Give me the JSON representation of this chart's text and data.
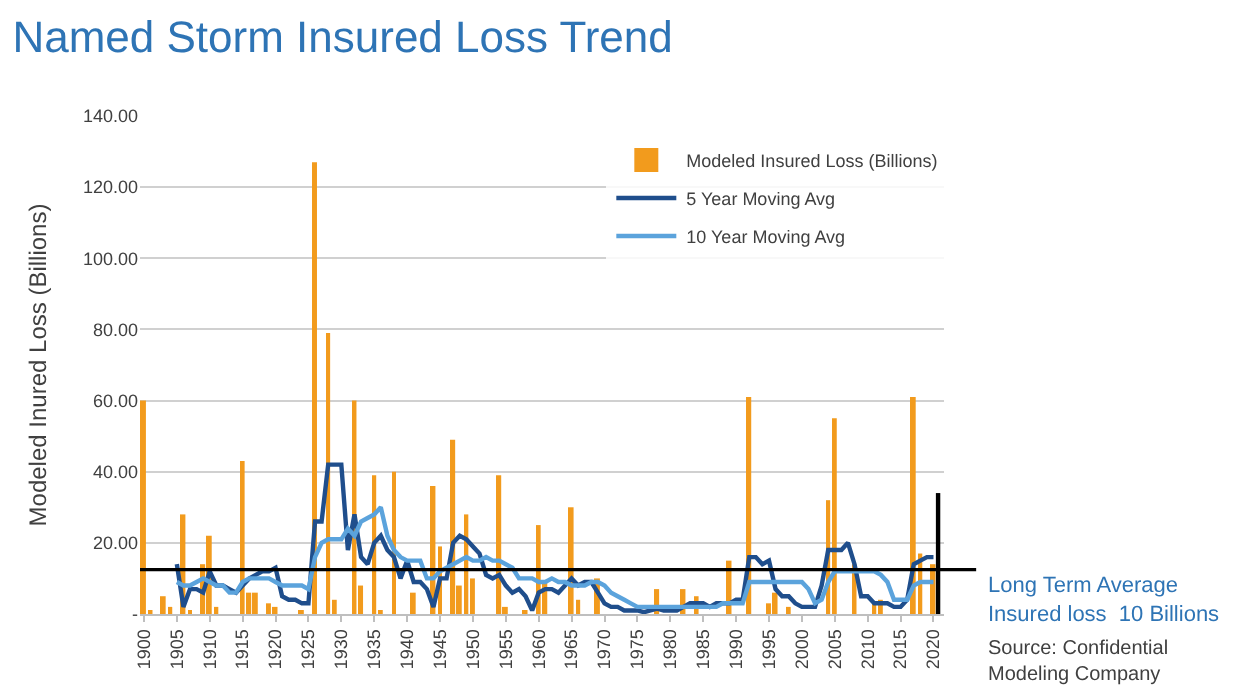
{
  "chart_data": {
    "type": "bar",
    "title": "Named Storm Insured Loss Trend",
    "ylabel": "Modeled Inured Loss (Billions)",
    "x": [
      1900,
      1901,
      1902,
      1903,
      1904,
      1905,
      1906,
      1907,
      1908,
      1909,
      1910,
      1911,
      1912,
      1913,
      1914,
      1915,
      1916,
      1917,
      1918,
      1919,
      1920,
      1921,
      1922,
      1923,
      1924,
      1925,
      1926,
      1927,
      1928,
      1929,
      1930,
      1931,
      1932,
      1933,
      1934,
      1935,
      1936,
      1937,
      1938,
      1939,
      1940,
      1941,
      1942,
      1943,
      1944,
      1945,
      1946,
      1947,
      1948,
      1949,
      1950,
      1951,
      1952,
      1953,
      1954,
      1955,
      1956,
      1957,
      1958,
      1959,
      1960,
      1961,
      1962,
      1963,
      1964,
      1965,
      1966,
      1967,
      1968,
      1969,
      1970,
      1971,
      1972,
      1973,
      1974,
      1975,
      1976,
      1977,
      1978,
      1979,
      1980,
      1981,
      1982,
      1983,
      1984,
      1985,
      1986,
      1987,
      1988,
      1989,
      1990,
      1991,
      1992,
      1993,
      1994,
      1995,
      1996,
      1997,
      1998,
      1999,
      2000,
      2001,
      2002,
      2003,
      2004,
      2005,
      2006,
      2007,
      2008,
      2009,
      2010,
      2011,
      2012,
      2013,
      2014,
      2015,
      2016,
      2017,
      2018,
      2019,
      2020
    ],
    "series": [
      {
        "name": "Modeled Insured Loss (Billions)",
        "color": "#f29b1d",
        "values": [
          60,
          1,
          0,
          5,
          2,
          0,
          28,
          1,
          0,
          14,
          22,
          2,
          0,
          0,
          0,
          43,
          6,
          6,
          0,
          3,
          2,
          0,
          0,
          0,
          1,
          0,
          127,
          0,
          79,
          4,
          0,
          0,
          60,
          8,
          0,
          39,
          1,
          0,
          40,
          0,
          0,
          6,
          0,
          0,
          36,
          19,
          0,
          49,
          8,
          28,
          10,
          0,
          0,
          0,
          39,
          2,
          0,
          0,
          1,
          0,
          25,
          9,
          0,
          0,
          0,
          30,
          4,
          0,
          0,
          10,
          0,
          0,
          0,
          0,
          0,
          0,
          0,
          0,
          7,
          0,
          0,
          0,
          7,
          0,
          5,
          0,
          0,
          0,
          0,
          15,
          0,
          0,
          61,
          0,
          0,
          3,
          6,
          0,
          2,
          0,
          0,
          0,
          0,
          0,
          32,
          55,
          0,
          0,
          14,
          0,
          0,
          3,
          4,
          0,
          0,
          0,
          0,
          61,
          17,
          0,
          14
        ]
      },
      {
        "name": "5 Year Moving Avg",
        "type": "line",
        "color": "#1f4e8c",
        "x": [
          1905,
          1906,
          1907,
          1908,
          1909,
          1910,
          1911,
          1912,
          1913,
          1914,
          1915,
          1916,
          1917,
          1918,
          1919,
          1920,
          1921,
          1922,
          1923,
          1924,
          1925,
          1926,
          1927,
          1928,
          1929,
          1930,
          1931,
          1932,
          1933,
          1934,
          1935,
          1936,
          1937,
          1938,
          1939,
          1940,
          1941,
          1942,
          1943,
          1944,
          1945,
          1946,
          1947,
          1948,
          1949,
          1950,
          1951,
          1952,
          1953,
          1954,
          1955,
          1956,
          1957,
          1958,
          1959,
          1960,
          1961,
          1962,
          1963,
          1964,
          1965,
          1966,
          1967,
          1968,
          1969,
          1970,
          1971,
          1972,
          1973,
          1974,
          1975,
          1976,
          1977,
          1978,
          1979,
          1980,
          1981,
          1982,
          1983,
          1984,
          1985,
          1986,
          1987,
          1988,
          1989,
          1990,
          1991,
          1992,
          1993,
          1994,
          1995,
          1996,
          1997,
          1998,
          1999,
          2000,
          2001,
          2002,
          2003,
          2004,
          2005,
          2006,
          2007,
          2008,
          2009,
          2010,
          2011,
          2012,
          2013,
          2014,
          2015,
          2016,
          2017,
          2018,
          2019,
          2020
        ],
        "values": [
          14,
          2,
          7,
          7,
          6,
          12,
          8,
          8,
          7,
          6,
          8,
          10,
          11,
          12,
          12,
          13,
          5,
          4,
          4,
          3,
          3,
          26,
          26,
          42,
          42,
          42,
          18,
          28,
          16,
          14,
          20,
          22,
          18,
          16,
          10,
          15,
          9,
          9,
          7,
          2,
          10,
          10,
          20,
          22,
          21,
          19,
          17,
          11,
          10,
          11,
          8,
          6,
          7,
          5,
          1,
          6,
          7,
          7,
          6,
          8,
          10,
          8,
          9,
          9,
          6,
          3,
          2,
          2,
          1,
          1,
          1,
          0.5,
          1,
          1.5,
          1,
          1,
          1,
          2,
          3,
          3,
          3,
          2,
          3,
          3,
          3,
          4,
          4,
          16,
          16,
          14,
          15,
          7,
          5,
          5,
          3,
          2,
          2,
          2,
          8,
          18,
          18,
          18,
          20,
          14,
          5,
          5,
          3,
          3,
          3,
          2,
          2,
          4,
          14,
          15,
          16,
          16
        ]
      },
      {
        "name": "10 Year Moving Avg",
        "type": "line",
        "color": "#5ba3dc",
        "x": [
          1905,
          1906,
          1907,
          1908,
          1909,
          1910,
          1911,
          1912,
          1913,
          1914,
          1915,
          1916,
          1917,
          1918,
          1919,
          1920,
          1921,
          1922,
          1923,
          1924,
          1925,
          1926,
          1927,
          1928,
          1929,
          1930,
          1931,
          1932,
          1933,
          1934,
          1935,
          1936,
          1937,
          1938,
          1939,
          1940,
          1941,
          1942,
          1943,
          1944,
          1945,
          1946,
          1947,
          1948,
          1949,
          1950,
          1951,
          1952,
          1953,
          1954,
          1955,
          1956,
          1957,
          1958,
          1959,
          1960,
          1961,
          1962,
          1963,
          1964,
          1965,
          1966,
          1967,
          1968,
          1969,
          1970,
          1971,
          1972,
          1973,
          1974,
          1975,
          1976,
          1977,
          1978,
          1979,
          1980,
          1981,
          1982,
          1983,
          1984,
          1985,
          1986,
          1987,
          1988,
          1989,
          1990,
          1991,
          1992,
          1993,
          1994,
          1995,
          1996,
          1997,
          1998,
          1999,
          2000,
          2001,
          2002,
          2003,
          2004,
          2005,
          2006,
          2007,
          2008,
          2009,
          2010,
          2011,
          2012,
          2013,
          2014,
          2015,
          2016,
          2017,
          2018,
          2019,
          2020
        ],
        "values": [
          9,
          8,
          8,
          9,
          10,
          9,
          8,
          8,
          6,
          6,
          9,
          10,
          10,
          10,
          10,
          9,
          8,
          8,
          8,
          8,
          7,
          16,
          20,
          21,
          21,
          21,
          24,
          22,
          26,
          27,
          28,
          30,
          22,
          18,
          16,
          15,
          15,
          15,
          10,
          10,
          12,
          13,
          14,
          15,
          16,
          15,
          15,
          16,
          15,
          15,
          14,
          13,
          10,
          10,
          10,
          9,
          9,
          10,
          9,
          9,
          8,
          8,
          8,
          9,
          9,
          8,
          6,
          5,
          4,
          3,
          2,
          2,
          2,
          2,
          2,
          2,
          2,
          2,
          2,
          2,
          2,
          2,
          2,
          3,
          3,
          3,
          3,
          9,
          9,
          9,
          9,
          9,
          9,
          9,
          9,
          9,
          7,
          3,
          4,
          9,
          12,
          12,
          12,
          12,
          12,
          12,
          12,
          11,
          9,
          4,
          4,
          4,
          8,
          9,
          9,
          9
        ]
      },
      {
        "type": "line",
        "color": "#000000",
        "x": [
          2020.7,
          2020.7
        ],
        "values": [
          0,
          34
        ]
      }
    ],
    "xlim": [
      1899.4,
      2021.6
    ],
    "xticks": [
      1900,
      1905,
      1910,
      1915,
      1920,
      1925,
      1930,
      1935,
      1940,
      1945,
      1950,
      1955,
      1960,
      1965,
      1970,
      1975,
      1980,
      1985,
      1990,
      1995,
      2000,
      2005,
      2010,
      2015,
      2020
    ],
    "ylim": [
      0,
      140
    ],
    "yticks": [
      {
        "value": 0,
        "label": "-"
      },
      {
        "value": 20,
        "label": "20.00"
      },
      {
        "value": 40,
        "label": "40.00"
      },
      {
        "value": 60,
        "label": "60.00"
      },
      {
        "value": 80,
        "label": "80.00"
      },
      {
        "value": 100,
        "label": "100.00"
      },
      {
        "value": 120,
        "label": "120.00"
      },
      {
        "value": 140,
        "label": "140.00"
      }
    ],
    "ref_lines": [
      {
        "axis": "y",
        "value": 12.5,
        "label": "Long Term Average\nInsured loss  10 Billions",
        "color": "#000000"
      }
    ],
    "annotations": [
      "Source: Confidential\nModeling Company"
    ],
    "grid": "y",
    "legend": "top right"
  }
}
